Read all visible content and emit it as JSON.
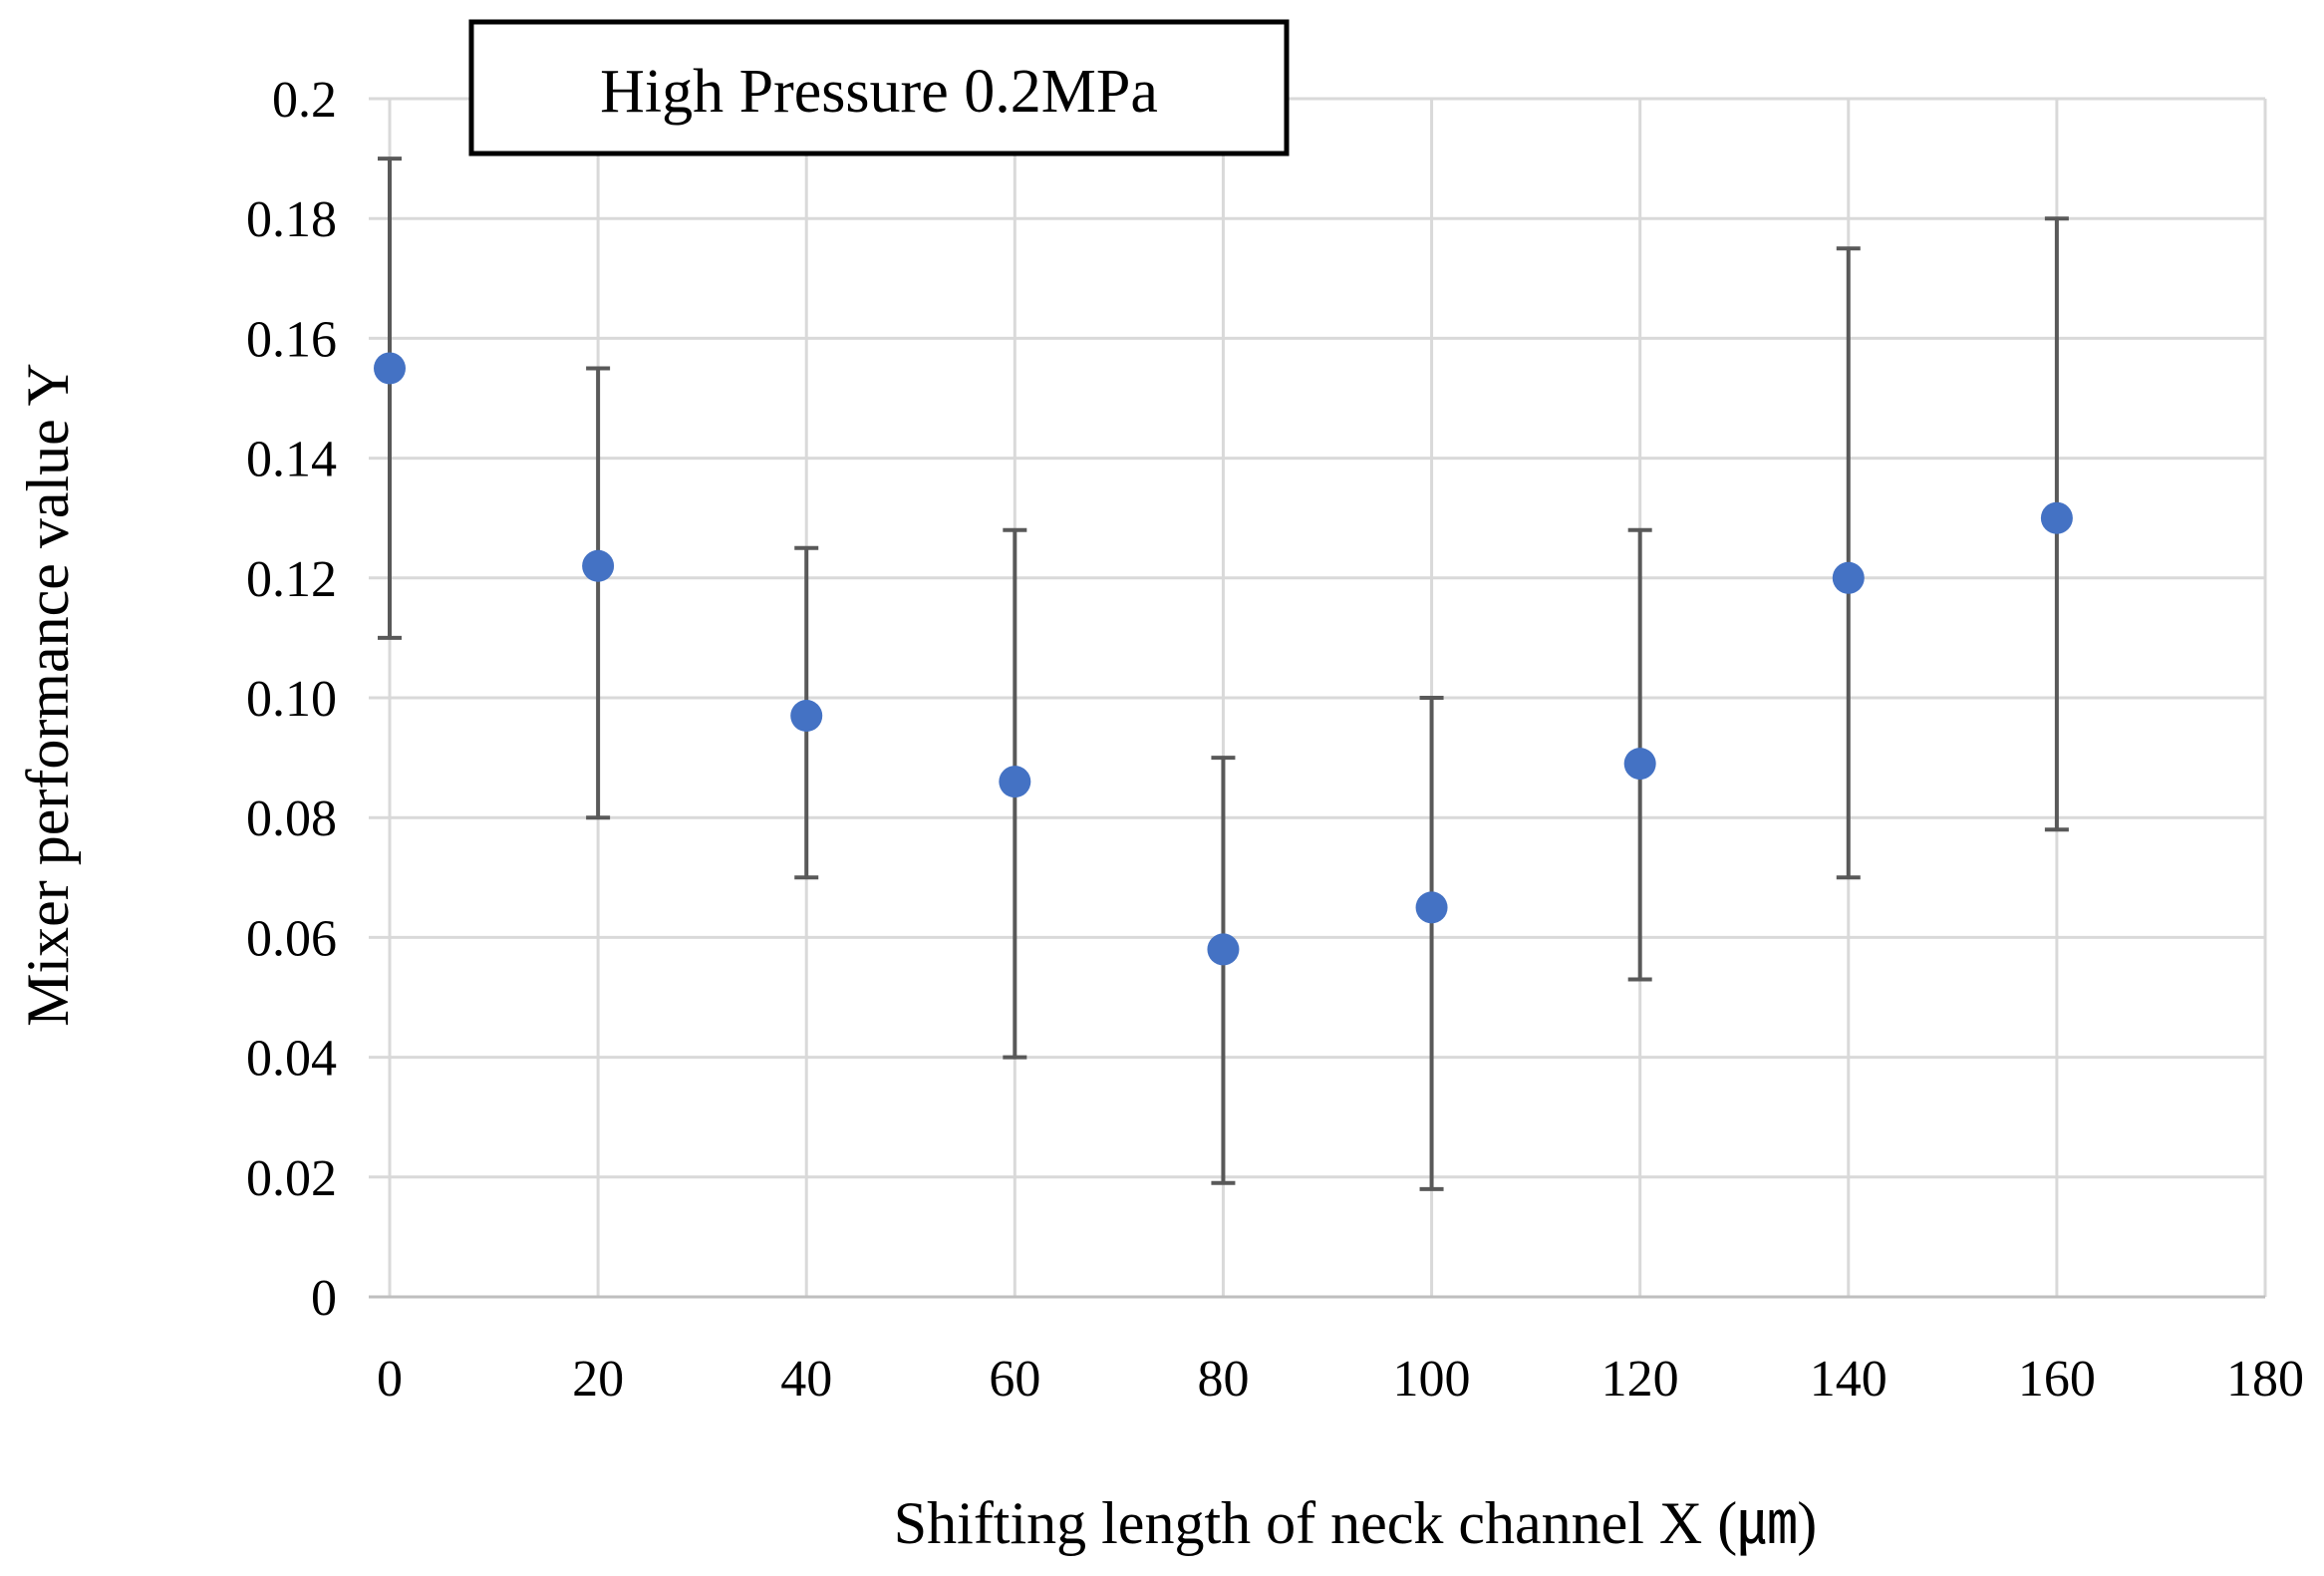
{
  "chart_data": {
    "type": "scatter",
    "title": "High Pressure 0.2MPa",
    "xlabel": "Shifting length of neck channel X (㎛)",
    "ylabel": "Mixer performance value Y",
    "xlim": [
      0,
      180
    ],
    "ylim": [
      0,
      0.2
    ],
    "x_ticks": [
      "0",
      "20",
      "40",
      "60",
      "80",
      "100",
      "120",
      "140",
      "160",
      "180"
    ],
    "x_tick_values": [
      0,
      20,
      40,
      60,
      80,
      100,
      120,
      140,
      160,
      180
    ],
    "y_ticks": [
      "0",
      "0.02",
      "0.04",
      "0.06",
      "0.08",
      "0.10",
      "0.12",
      "0.14",
      "0.16",
      "0.18",
      "0.2"
    ],
    "y_tick_values": [
      0,
      0.02,
      0.04,
      0.06,
      0.08,
      0.1,
      0.12,
      0.14,
      0.16,
      0.18,
      0.2
    ],
    "grid": true,
    "series": [
      {
        "name": "Mixer performance",
        "color": "#4472c4",
        "error_color": "#595959",
        "x": [
          0,
          20,
          40,
          60,
          80,
          100,
          120,
          140,
          160
        ],
        "y": [
          0.155,
          0.122,
          0.097,
          0.086,
          0.058,
          0.065,
          0.089,
          0.12,
          0.13
        ],
        "err_low": [
          0.11,
          0.08,
          0.07,
          0.04,
          0.019,
          0.018,
          0.053,
          0.07,
          0.078
        ],
        "err_high": [
          0.19,
          0.155,
          0.125,
          0.128,
          0.09,
          0.1,
          0.128,
          0.175,
          0.18
        ]
      }
    ]
  }
}
